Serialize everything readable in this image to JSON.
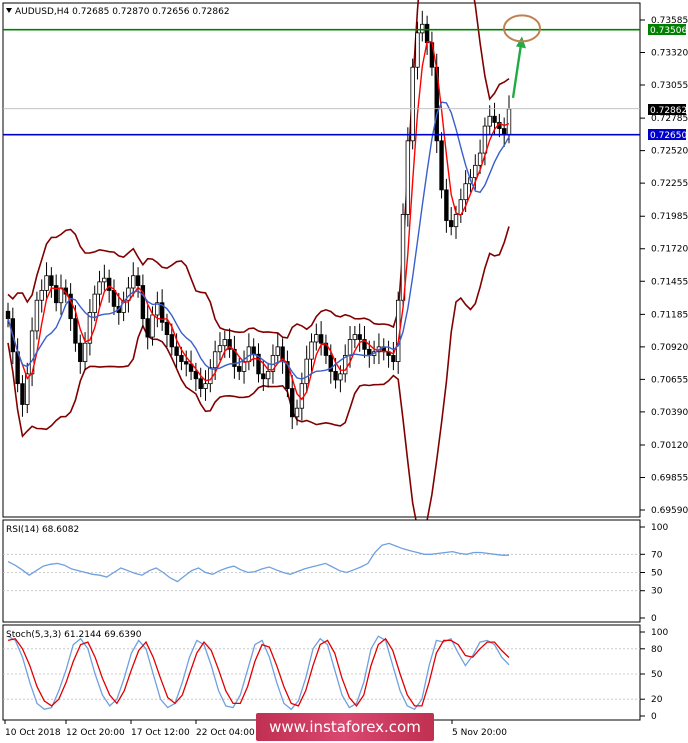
{
  "main": {
    "header": "AUDUSD,H4  0.72685 0.72870 0.72656 0.72862",
    "price_axis_labels": [
      "0.73585",
      "0.73320",
      "0.73055",
      "0.72785",
      "0.72520",
      "0.72255",
      "0.71985",
      "0.71720",
      "0.71455",
      "0.71185",
      "0.70920",
      "0.70655",
      "0.70390",
      "0.70120",
      "0.69855",
      "0.69590"
    ],
    "level_green_label": "0.73506",
    "level_current_label": "0.72862",
    "level_blue_label": "0.72650"
  },
  "rsi": {
    "header": "RSI(14) 68.6082",
    "axis_labels": [
      "100",
      "70",
      "50",
      "30",
      "0"
    ]
  },
  "stoch": {
    "header": "Stoch(5,3,3) 61.2144 69.6390",
    "axis_labels": [
      "100",
      "80",
      "50",
      "20",
      "0"
    ]
  },
  "time_axis_labels": [
    "10 Oct 2018",
    "12 Oct 20:00",
    "17 Oct 12:00",
    "22 Oct 04:00",
    "5 Nov 20:00"
  ],
  "watermark": "www.instaforex.com",
  "colors": {
    "candles": "#000000",
    "bollinger": "#800000",
    "ma_fast": "#ff0000",
    "ma_slow": "#3a5fcd",
    "level_green": "#008000",
    "level_blue": "#0000cc",
    "arrow": "#22aa44",
    "target_circle": "#c08050",
    "rsi_line": "#6fa0e0",
    "stoch_main": "#6fa0e0",
    "stoch_signal": "#e00000"
  },
  "chart_data": {
    "type": "candlestick",
    "symbol": "AUDUSD",
    "timeframe": "H4",
    "ohlc": [
      0.72685,
      0.7287,
      0.72656,
      0.72862
    ],
    "ylim": [
      0.6959,
      0.7372
    ],
    "horizontal_levels": [
      0.73506,
      0.7265
    ],
    "close_path": [
      0.7115,
      0.7088,
      0.7062,
      0.7045,
      0.707,
      0.7105,
      0.713,
      0.7138,
      0.715,
      0.7142,
      0.7128,
      0.714,
      0.7135,
      0.7115,
      0.7095,
      0.708,
      0.7095,
      0.712,
      0.7135,
      0.7145,
      0.7148,
      0.7138,
      0.7125,
      0.712,
      0.713,
      0.714,
      0.715,
      0.7142,
      0.7115,
      0.71,
      0.7118,
      0.7128,
      0.7112,
      0.7102,
      0.7092,
      0.7085,
      0.708,
      0.7078,
      0.7072,
      0.7066,
      0.7058,
      0.7062,
      0.7075,
      0.7088,
      0.7093,
      0.7098,
      0.709,
      0.7076,
      0.7072,
      0.708,
      0.7092,
      0.7086,
      0.707,
      0.7066,
      0.7072,
      0.7085,
      0.7092,
      0.708,
      0.7058,
      0.7035,
      0.7042,
      0.7062,
      0.7082,
      0.7096,
      0.7102,
      0.7095,
      0.7085,
      0.7072,
      0.7065,
      0.707,
      0.7085,
      0.7098,
      0.7102,
      0.7098,
      0.709,
      0.7085,
      0.7088,
      0.7092,
      0.7088,
      0.7085,
      0.708,
      0.713,
      0.72,
      0.726,
      0.732,
      0.7348,
      0.7355,
      0.734,
      0.732,
      0.726,
      0.722,
      0.7195,
      0.719,
      0.72,
      0.7212,
      0.7225,
      0.723,
      0.724,
      0.725,
      0.7272,
      0.728,
      0.7275,
      0.727,
      0.7265,
      0.7286
    ],
    "rsi": {
      "period": 14,
      "value": 68.6082,
      "ylim": [
        0,
        100
      ],
      "levels": [
        70,
        50,
        30
      ],
      "values": [
        62,
        58,
        53,
        47,
        52,
        57,
        59,
        60,
        58,
        54,
        52,
        50,
        48,
        47,
        45,
        50,
        55,
        52,
        49,
        47,
        52,
        55,
        50,
        44,
        40,
        46,
        52,
        55,
        50,
        48,
        52,
        55,
        57,
        53,
        50,
        51,
        54,
        56,
        53,
        50,
        48,
        51,
        54,
        56,
        58,
        60,
        56,
        52,
        50,
        53,
        56,
        60,
        72,
        80,
        82,
        79,
        76,
        74,
        72,
        70,
        70,
        71,
        72,
        73,
        71,
        70,
        72,
        72,
        71,
        70,
        69,
        69
      ]
    },
    "stochastic": {
      "params": [
        5,
        3,
        3
      ],
      "main": 61.2144,
      "signal": 69.639,
      "ylim": [
        0,
        100
      ],
      "levels": [
        80,
        50,
        20
      ],
      "main_values": [
        95,
        90,
        70,
        40,
        15,
        8,
        10,
        30,
        55,
        85,
        92,
        80,
        50,
        25,
        12,
        20,
        45,
        75,
        90,
        80,
        50,
        20,
        10,
        15,
        40,
        70,
        90,
        85,
        60,
        30,
        12,
        10,
        25,
        55,
        85,
        90,
        70,
        40,
        15,
        8,
        18,
        45,
        80,
        92,
        85,
        55,
        25,
        10,
        15,
        40,
        80,
        95,
        90,
        60,
        30,
        12,
        8,
        20,
        60,
        90,
        88,
        92,
        75,
        60,
        72,
        88,
        90,
        85,
        70,
        61
      ],
      "signal_values": [
        90,
        92,
        80,
        60,
        35,
        18,
        12,
        20,
        40,
        65,
        85,
        88,
        70,
        45,
        25,
        15,
        30,
        55,
        78,
        88,
        70,
        45,
        22,
        15,
        25,
        50,
        75,
        88,
        78,
        55,
        30,
        15,
        15,
        35,
        65,
        85,
        82,
        60,
        35,
        15,
        12,
        30,
        60,
        85,
        90,
        75,
        45,
        22,
        12,
        25,
        60,
        85,
        92,
        78,
        50,
        25,
        12,
        12,
        40,
        75,
        90,
        90,
        85,
        72,
        70,
        80,
        88,
        88,
        78,
        69.6
      ]
    },
    "x_tick_labels": [
      "10 Oct 2018",
      "12 Oct 20:00",
      "17 Oct 12:00",
      "22 Oct 04:00",
      "5 Nov 20:00"
    ]
  }
}
